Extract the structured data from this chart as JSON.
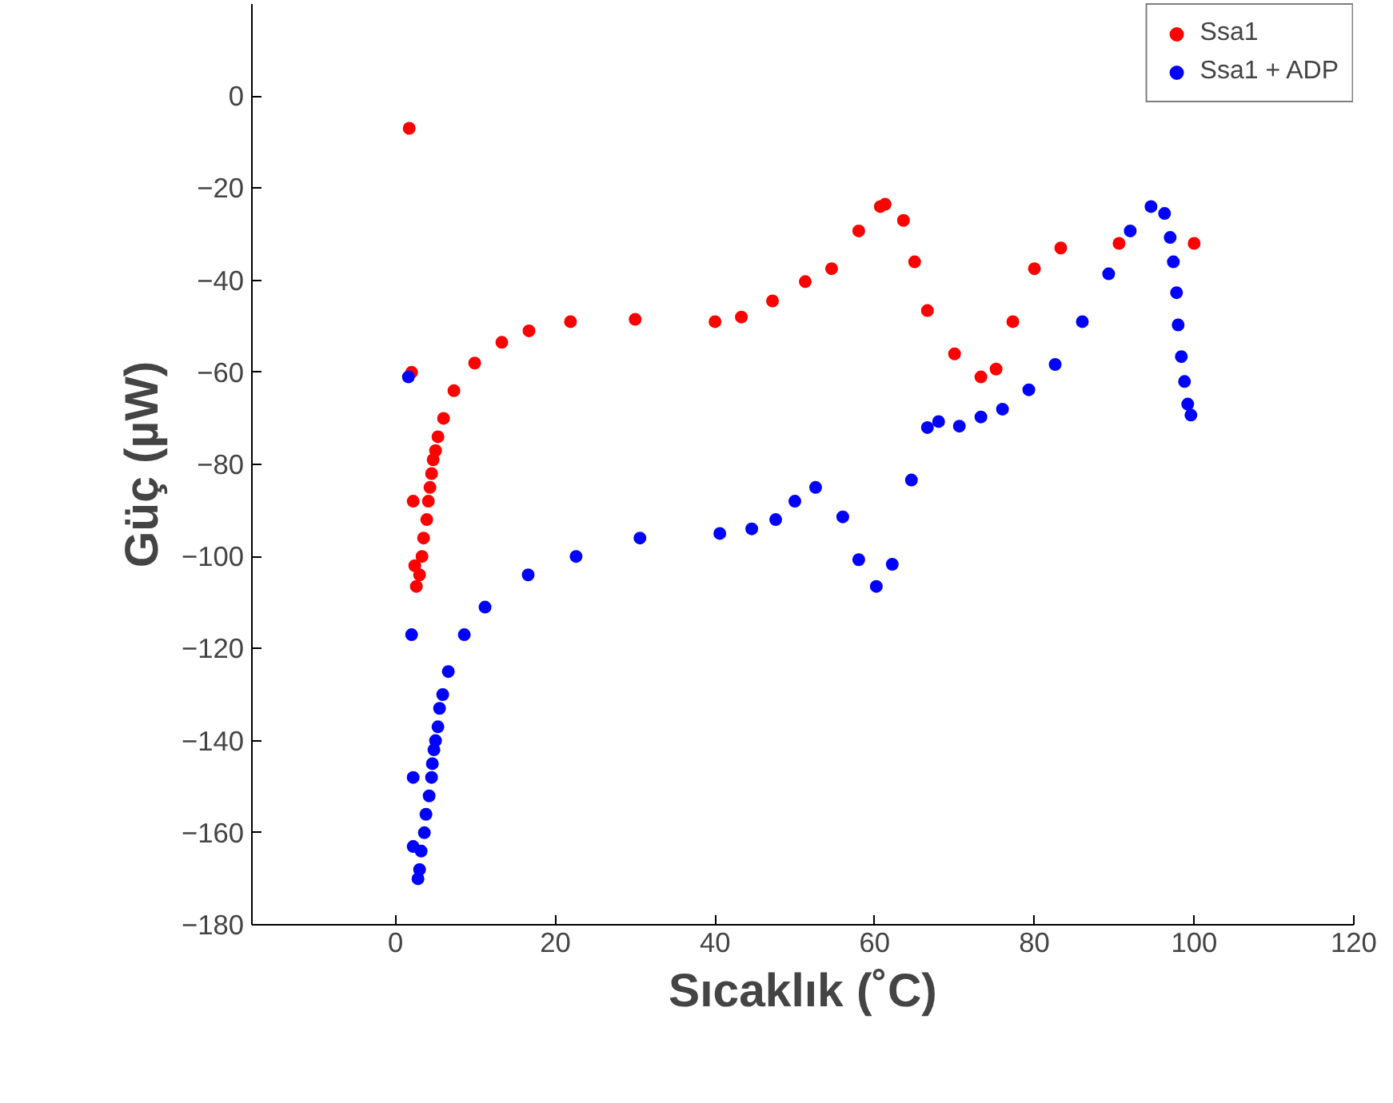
{
  "chart_data": {
    "type": "scatter",
    "xlabel": "Sıcaklık (˚C)",
    "ylabel": "Güç (µW)",
    "xlim": [
      -18,
      120
    ],
    "xticks": [
      0,
      20,
      40,
      60,
      80,
      100,
      120
    ],
    "ylim": [
      -180,
      20
    ],
    "yticks": [
      -180,
      -160,
      -140,
      -120,
      -100,
      -80,
      -60,
      -40,
      -20,
      0
    ],
    "grid": false,
    "legend": "top right",
    "marker": "circle",
    "series": [
      {
        "name": "Ssa1",
        "color": "#ff0000",
        "x": [
          1.7,
          2,
          2.2,
          2.4,
          2.6,
          3,
          3.3,
          3.5,
          3.9,
          4.1,
          4.3,
          4.5,
          4.7,
          5,
          5.3,
          6,
          7.3,
          9.9,
          13.3,
          16.7,
          21.9,
          30,
          40,
          43.3,
          47.2,
          51.3,
          54.6,
          58,
          60.7,
          61.3,
          63.6,
          65,
          66.6,
          70,
          73.3,
          75.2,
          77.3,
          80,
          83.3,
          90.6,
          100
        ],
        "values": [
          -7,
          -60,
          -88,
          -102,
          -106.5,
          -104,
          -100,
          -96,
          -92,
          -88,
          -85,
          -82,
          -79,
          -77,
          -74,
          -70,
          -64,
          -58,
          -53.5,
          -51,
          -49,
          -48.5,
          -49,
          -48,
          -44.5,
          -40.3,
          -37.5,
          -29.3,
          -24,
          -23.5,
          -27,
          -36,
          -46.6,
          -56,
          -61,
          -59.3,
          -49,
          -37.5,
          -33,
          -32,
          -32
        ]
      },
      {
        "name": "Ssa1 + ADP",
        "color": "#0000ff",
        "x": [
          1.6,
          2,
          2.2,
          2.2,
          2.8,
          3,
          3.2,
          3.6,
          3.8,
          4.2,
          4.5,
          4.6,
          4.8,
          5,
          5.3,
          5.5,
          5.9,
          6.6,
          8.6,
          11.2,
          16.6,
          22.6,
          30.6,
          40.6,
          44.6,
          47.6,
          50,
          52.6,
          56,
          58,
          60.2,
          62.2,
          64.6,
          66.6,
          68,
          70.6,
          73.3,
          76,
          79.3,
          82.6,
          86,
          89.3,
          92,
          94.6,
          96.3,
          97,
          97.4,
          97.8,
          98,
          98.4,
          98.8,
          99.2,
          99.6
        ],
        "values": [
          -61,
          -117,
          -148,
          -163,
          -170,
          -168,
          -164,
          -160,
          -156,
          -152,
          -148,
          -145,
          -142,
          -140,
          -137,
          -133,
          -130,
          -125,
          -117,
          -111,
          -104,
          -100,
          -96,
          -95,
          -94,
          -92,
          -88,
          -85,
          -91.4,
          -100.7,
          -106.5,
          -101.7,
          -83.4,
          -72,
          -70.7,
          -71.7,
          -69.7,
          -68,
          -63.8,
          -58.3,
          -49,
          -38.6,
          -29.3,
          -24,
          -25.5,
          -30.7,
          -36,
          -42.7,
          -49.7,
          -56.6,
          -62,
          -66.9,
          -69.3
        ]
      }
    ]
  }
}
